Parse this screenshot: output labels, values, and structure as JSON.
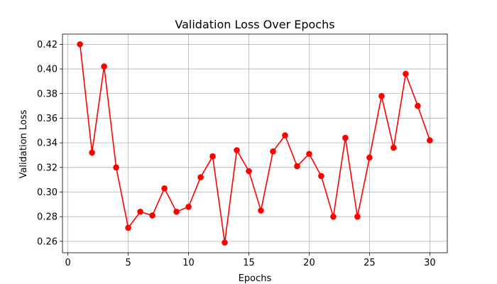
{
  "chart_data": {
    "type": "line",
    "title": "Validation Loss Over Epochs",
    "xlabel": "Epochs",
    "ylabel": "Validation Loss",
    "xlim": [
      -0.45,
      31.45
    ],
    "ylim": [
      0.2507,
      0.4283
    ],
    "x_ticks": [
      0,
      5,
      10,
      15,
      20,
      25,
      30
    ],
    "y_ticks": [
      0.26,
      0.28,
      0.3,
      0.32,
      0.34,
      0.36,
      0.38,
      0.4,
      0.42
    ],
    "grid": true,
    "series": [
      {
        "color": "#ff0000",
        "marker": "circle",
        "x": [
          1,
          2,
          3,
          4,
          5,
          6,
          7,
          8,
          9,
          10,
          11,
          12,
          13,
          14,
          15,
          16,
          17,
          18,
          19,
          20,
          21,
          22,
          23,
          24,
          25,
          26,
          27,
          28,
          29,
          30
        ],
        "y": [
          0.42,
          0.332,
          0.402,
          0.32,
          0.271,
          0.284,
          0.281,
          0.303,
          0.284,
          0.288,
          0.312,
          0.329,
          0.259,
          0.334,
          0.317,
          0.285,
          0.333,
          0.346,
          0.321,
          0.331,
          0.313,
          0.28,
          0.344,
          0.28,
          0.328,
          0.378,
          0.336,
          0.396,
          0.37,
          0.342
        ]
      }
    ]
  }
}
